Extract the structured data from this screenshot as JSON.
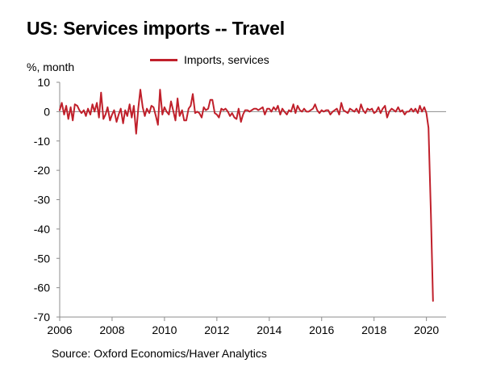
{
  "title": "US: Services imports -- Travel",
  "unit_label": "%, month",
  "source": "Source: Oxford Economics/Haver Analytics",
  "colors": {
    "series": "#c0202b",
    "axis": "#8c8c8c"
  },
  "chart_data": {
    "type": "line",
    "title": "US: Services imports -- Travel",
    "ylabel": "%, month",
    "xlabel": "",
    "ylim": [
      -70,
      10
    ],
    "xlim": [
      2006.0,
      2020.75
    ],
    "y_ticks": [
      10,
      0,
      -10,
      -20,
      -30,
      -40,
      -50,
      -60,
      -70
    ],
    "x_ticks": [
      2006,
      2008,
      2010,
      2012,
      2014,
      2016,
      2018,
      2020
    ],
    "legend_position": "top-center",
    "grid": false,
    "series": [
      {
        "name": "Imports, services",
        "color": "#c0202b",
        "x": [
          2006.0,
          2006.08,
          2006.17,
          2006.25,
          2006.33,
          2006.42,
          2006.5,
          2006.58,
          2006.67,
          2006.75,
          2006.83,
          2006.92,
          2007.0,
          2007.08,
          2007.17,
          2007.25,
          2007.33,
          2007.42,
          2007.5,
          2007.58,
          2007.67,
          2007.75,
          2007.83,
          2007.92,
          2008.0,
          2008.08,
          2008.17,
          2008.25,
          2008.33,
          2008.42,
          2008.5,
          2008.58,
          2008.67,
          2008.75,
          2008.83,
          2008.92,
          2009.0,
          2009.08,
          2009.17,
          2009.25,
          2009.33,
          2009.42,
          2009.5,
          2009.58,
          2009.67,
          2009.75,
          2009.83,
          2009.92,
          2010.0,
          2010.08,
          2010.17,
          2010.25,
          2010.33,
          2010.42,
          2010.5,
          2010.58,
          2010.67,
          2010.75,
          2010.83,
          2010.92,
          2011.0,
          2011.08,
          2011.17,
          2011.25,
          2011.33,
          2011.42,
          2011.5,
          2011.58,
          2011.67,
          2011.75,
          2011.83,
          2011.92,
          2012.0,
          2012.08,
          2012.17,
          2012.25,
          2012.33,
          2012.42,
          2012.5,
          2012.58,
          2012.67,
          2012.75,
          2012.83,
          2012.92,
          2013.0,
          2013.08,
          2013.17,
          2013.25,
          2013.33,
          2013.42,
          2013.5,
          2013.58,
          2013.67,
          2013.75,
          2013.83,
          2013.92,
          2014.0,
          2014.08,
          2014.17,
          2014.25,
          2014.33,
          2014.42,
          2014.5,
          2014.58,
          2014.67,
          2014.75,
          2014.83,
          2014.92,
          2015.0,
          2015.08,
          2015.17,
          2015.25,
          2015.33,
          2015.42,
          2015.5,
          2015.58,
          2015.67,
          2015.75,
          2015.83,
          2015.92,
          2016.0,
          2016.08,
          2016.17,
          2016.25,
          2016.33,
          2016.42,
          2016.5,
          2016.58,
          2016.67,
          2016.75,
          2016.83,
          2016.92,
          2017.0,
          2017.08,
          2017.17,
          2017.25,
          2017.33,
          2017.42,
          2017.5,
          2017.58,
          2017.67,
          2017.75,
          2017.83,
          2017.92,
          2018.0,
          2018.08,
          2018.17,
          2018.25,
          2018.33,
          2018.42,
          2018.5,
          2018.58,
          2018.67,
          2018.75,
          2018.83,
          2018.92,
          2019.0,
          2019.08,
          2019.17,
          2019.25,
          2019.33,
          2019.42,
          2019.5,
          2019.58,
          2019.67,
          2019.75,
          2019.83,
          2019.92,
          2020.0,
          2020.08,
          2020.17,
          2020.25
        ],
        "values": [
          0.5,
          3.0,
          -1.0,
          2.0,
          -2.5,
          1.5,
          -3.0,
          2.5,
          2.0,
          0.5,
          -0.5,
          0.5,
          -1.5,
          1.0,
          -1.0,
          2.5,
          0.0,
          3.0,
          -2.0,
          6.5,
          -2.5,
          -1.0,
          1.5,
          -3.0,
          -1.0,
          0.5,
          -3.5,
          -1.0,
          1.0,
          -4.0,
          0.5,
          -1.5,
          2.5,
          -2.0,
          2.0,
          -7.5,
          1.0,
          7.5,
          1.5,
          -1.5,
          1.0,
          -0.5,
          2.0,
          1.5,
          -1.5,
          -4.5,
          7.5,
          -1.0,
          1.5,
          0.0,
          -1.0,
          3.5,
          0.5,
          -3.0,
          4.5,
          -1.5,
          0.5,
          -3.0,
          -3.0,
          1.0,
          2.0,
          6.0,
          -0.5,
          0.0,
          -0.5,
          -2.0,
          1.5,
          0.5,
          1.0,
          4.0,
          4.0,
          -0.5,
          -1.0,
          -2.0,
          1.0,
          0.5,
          1.0,
          0.0,
          -1.5,
          -0.5,
          -2.0,
          -2.5,
          1.0,
          -3.5,
          -1.0,
          0.5,
          0.5,
          0.0,
          0.5,
          1.0,
          1.0,
          0.5,
          1.0,
          1.5,
          -1.0,
          1.0,
          1.0,
          0.0,
          1.5,
          0.5,
          2.0,
          -1.0,
          1.0,
          0.0,
          -1.0,
          0.5,
          0.0,
          2.5,
          -0.5,
          2.0,
          0.5,
          0.0,
          1.0,
          0.0,
          0.0,
          0.5,
          1.0,
          2.5,
          0.5,
          -0.5,
          0.5,
          0.0,
          0.5,
          0.5,
          -1.0,
          0.0,
          0.5,
          1.0,
          -1.0,
          3.0,
          0.5,
          0.0,
          -0.5,
          1.0,
          0.5,
          0.0,
          1.0,
          -0.5,
          2.5,
          0.5,
          -0.5,
          1.0,
          0.5,
          1.0,
          -0.5,
          0.0,
          1.5,
          -0.5,
          1.0,
          2.0,
          -2.0,
          0.0,
          1.0,
          0.5,
          0.0,
          1.5,
          0.0,
          0.5,
          -1.0,
          0.0,
          0.0,
          1.0,
          0.0,
          1.0,
          -0.5,
          2.0,
          0.0,
          1.5,
          -0.5,
          -5.5,
          -35.0,
          -64.5
        ]
      }
    ]
  }
}
